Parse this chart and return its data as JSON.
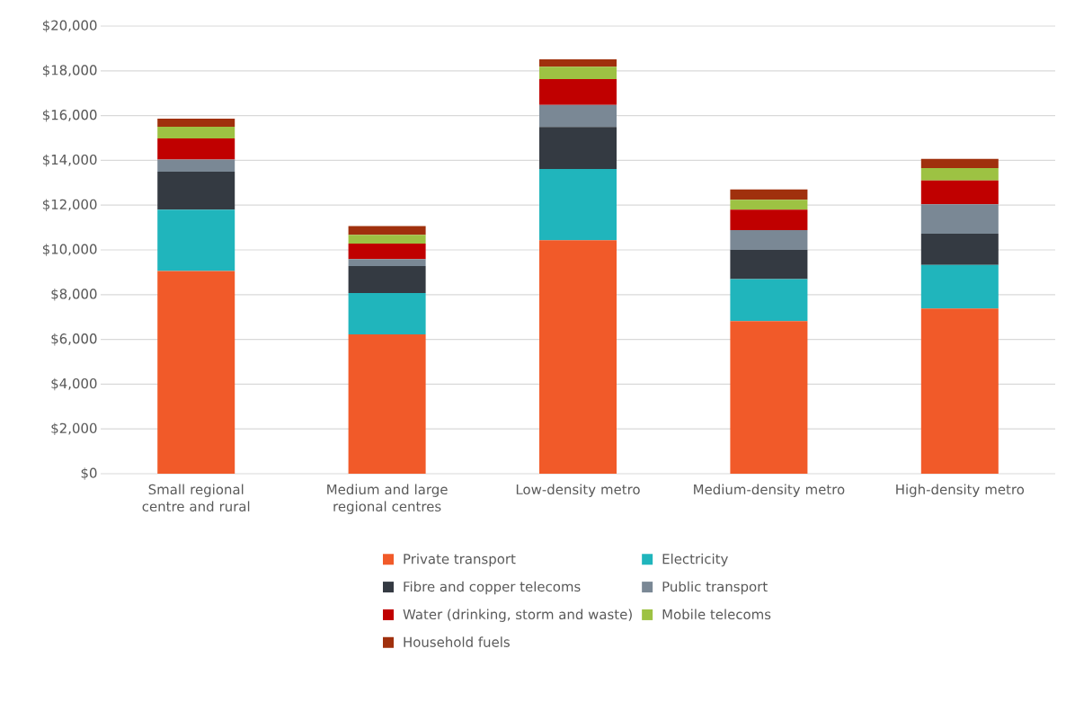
{
  "chart_data": {
    "type": "bar",
    "stacked": true,
    "categories": [
      "Small regional centre and rural",
      "Medium and large regional centres",
      "Low-density metro",
      "Medium-density metro",
      "High-density metro"
    ],
    "series": [
      {
        "name": "Private transport",
        "color": "#f15a29",
        "values": [
          9060,
          6220,
          10430,
          6820,
          7380
        ]
      },
      {
        "name": "Electricity",
        "color": "#20b5bc",
        "values": [
          2740,
          1850,
          3180,
          1870,
          1950
        ]
      },
      {
        "name": "Fibre and copper telecoms",
        "color": "#343a42",
        "values": [
          1690,
          1210,
          1880,
          1310,
          1390
        ]
      },
      {
        "name": "Public transport",
        "color": "#7a8895",
        "values": [
          550,
          310,
          990,
          880,
          1320
        ]
      },
      {
        "name": "Water (drinking, storm and waste)",
        "color": "#c00000",
        "values": [
          940,
          690,
          1150,
          920,
          1060
        ]
      },
      {
        "name": "Mobile telecoms",
        "color": "#9dc243",
        "values": [
          520,
          390,
          550,
          440,
          550
        ]
      },
      {
        "name": "Household fuels",
        "color": "#a0300d",
        "values": [
          360,
          390,
          330,
          460,
          420
        ]
      }
    ],
    "ylim": [
      0,
      20000
    ],
    "yticks": [
      {
        "value": 0,
        "label": "$0"
      },
      {
        "value": 2000,
        "label": "$2,000"
      },
      {
        "value": 4000,
        "label": "$4,000"
      },
      {
        "value": 6000,
        "label": "$6,000"
      },
      {
        "value": 8000,
        "label": "$8,000"
      },
      {
        "value": 10000,
        "label": "$10,000"
      },
      {
        "value": 12000,
        "label": "$12,000"
      },
      {
        "value": 14000,
        "label": "$14,000"
      },
      {
        "value": 16000,
        "label": "$16,000"
      },
      {
        "value": 18000,
        "label": "$18,000"
      },
      {
        "value": 20000,
        "label": "$20,000"
      }
    ],
    "grid": "y",
    "legend": "bottom"
  }
}
